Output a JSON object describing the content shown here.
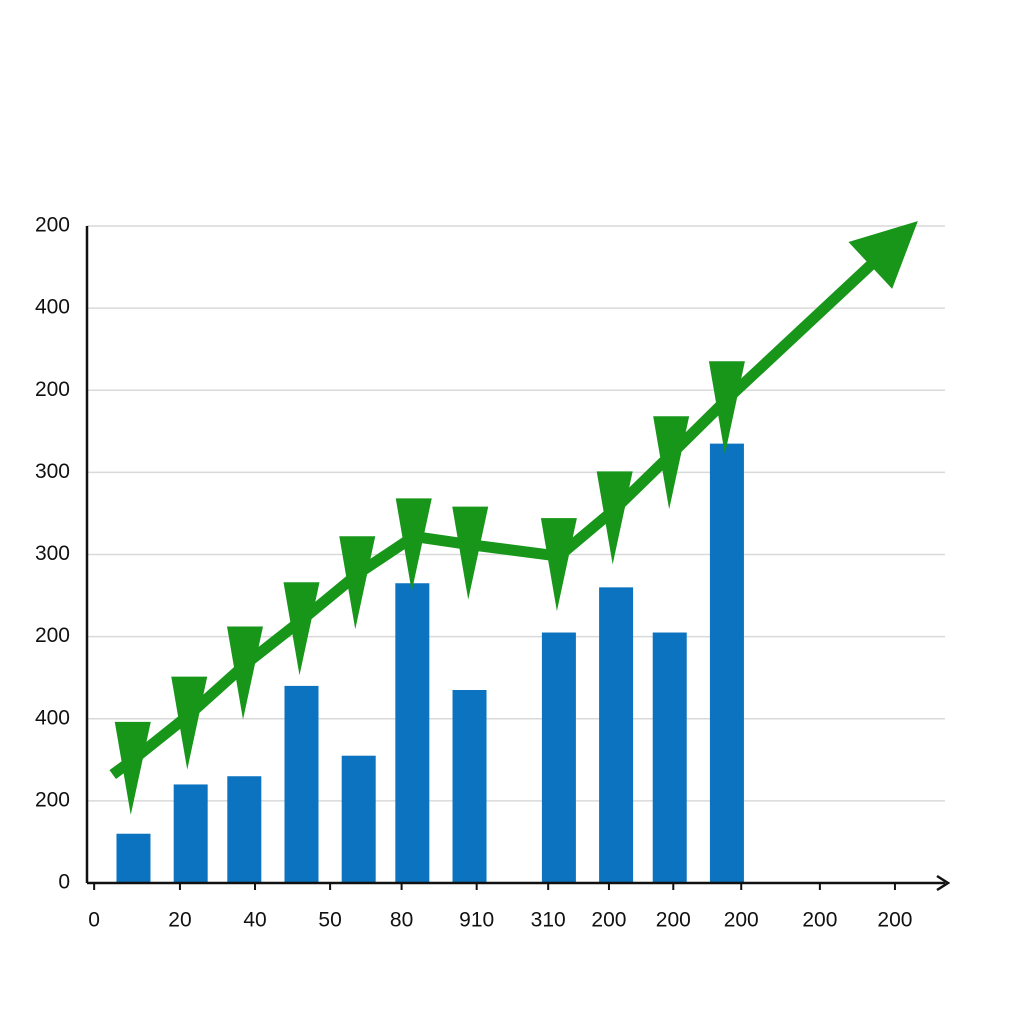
{
  "chart_data": {
    "type": "bar-line",
    "xlim": [
      0,
      12
    ],
    "ylim": [
      0,
      8
    ],
    "yticks": [
      0,
      {
        "value": 1,
        "label": "200"
      },
      {
        "value": 2,
        "label": "400"
      },
      {
        "value": 3,
        "label": "200"
      },
      {
        "value": 4,
        "label": "300"
      },
      {
        "value": 5,
        "label": "300"
      },
      {
        "value": 6,
        "label": "200"
      },
      {
        "value": 7,
        "label": "400"
      },
      {
        "value": 8,
        "label": "200"
      }
    ],
    "xticks": [
      {
        "value": 0.1,
        "label": "0"
      },
      {
        "value": 1.3,
        "label": "20"
      },
      {
        "value": 2.35,
        "label": "40"
      },
      {
        "value": 3.4,
        "label": "50"
      },
      {
        "value": 4.4,
        "label": "80"
      },
      {
        "value": 5.45,
        "label": "910"
      },
      {
        "value": 6.45,
        "label": "310"
      },
      {
        "value": 7.3,
        "label": "200"
      },
      {
        "value": 8.2,
        "label": "200"
      },
      {
        "value": 9.15,
        "label": "200"
      },
      {
        "value": 10.25,
        "label": "200"
      },
      {
        "value": 11.3,
        "label": "200"
      }
    ],
    "grid": true,
    "bars": {
      "color": "#0b73bf",
      "x": [
        0.65,
        1.45,
        2.2,
        3.0,
        3.8,
        4.55,
        5.35,
        6.6,
        7.4,
        8.15,
        8.95
      ],
      "values": [
        0.6,
        1.2,
        1.3,
        2.4,
        1.55,
        3.65,
        2.35,
        3.05,
        3.6,
        3.05,
        5.35
      ]
    },
    "line": {
      "color": "#17961a",
      "marker": "triangle-down",
      "x": [
        0.36,
        0.64,
        1.43,
        2.21,
        3.0,
        3.78,
        4.57,
        5.36,
        6.6,
        7.38,
        8.17,
        8.95,
        11.62
      ],
      "values": [
        1.32,
        1.5,
        2.05,
        2.66,
        3.2,
        3.76,
        4.22,
        4.12,
        3.98,
        4.55,
        5.22,
        5.89,
        8.06
      ]
    }
  }
}
